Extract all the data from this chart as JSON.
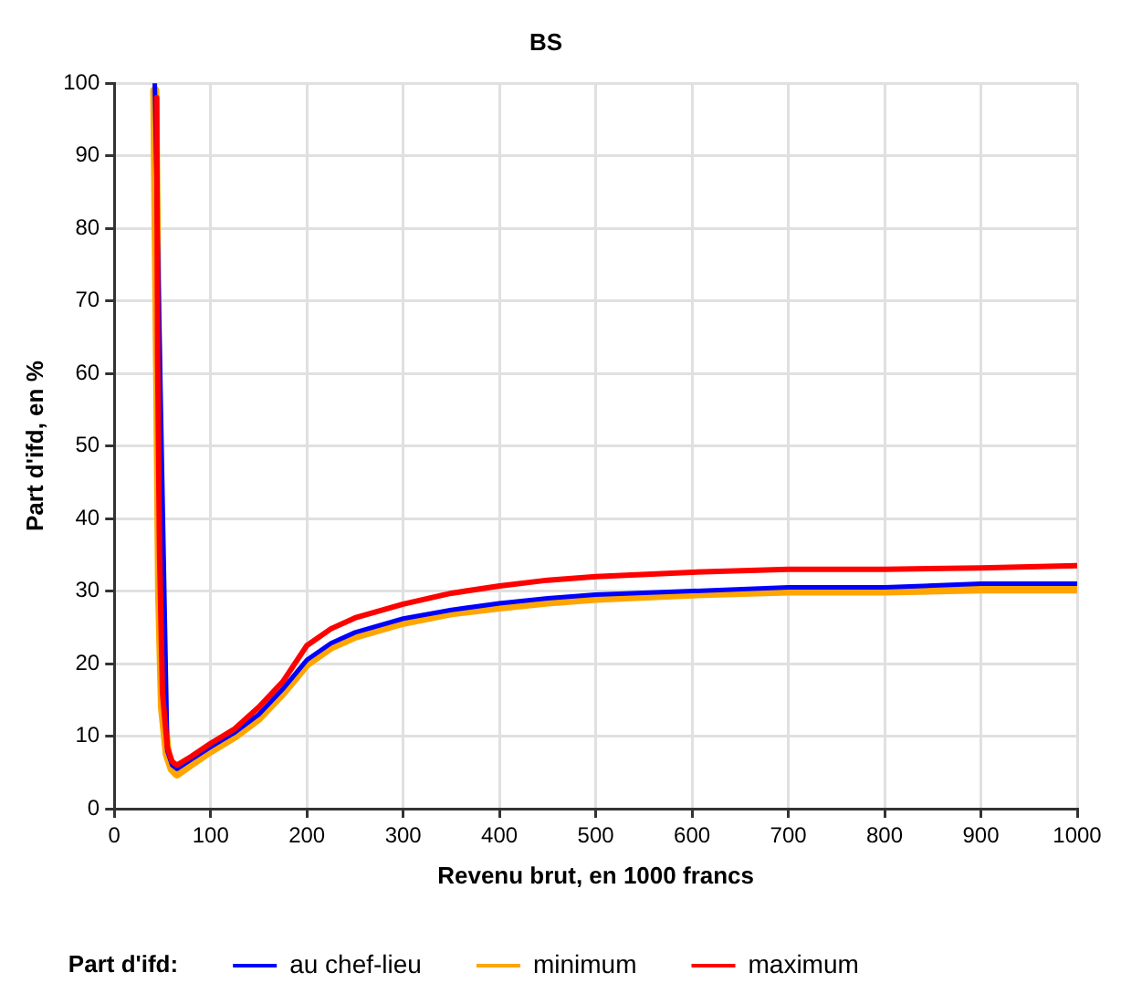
{
  "chart_data": {
    "type": "line",
    "title": "BS",
    "xlabel": "Revenu brut, en 1000 francs",
    "ylabel": "Part d'ifd, en %",
    "legend_title": "Part d'ifd:",
    "xlim": [
      0,
      1000
    ],
    "ylim": [
      0,
      100
    ],
    "xticks": [
      0,
      100,
      200,
      300,
      400,
      500,
      600,
      700,
      800,
      900,
      1000
    ],
    "yticks": [
      0,
      10,
      20,
      30,
      40,
      50,
      60,
      70,
      80,
      90,
      100
    ],
    "grid": true,
    "legend": "bottom",
    "marker": "none",
    "line_style": "solid",
    "series": [
      {
        "name": "au chef-lieu",
        "color": "#0000ff",
        "x": [
          42,
          45,
          47,
          50,
          55,
          60,
          65,
          80,
          100,
          125,
          150,
          175,
          200,
          225,
          250,
          300,
          350,
          400,
          450,
          500,
          600,
          700,
          800,
          900,
          1000
        ],
        "values": [
          100,
          null,
          null,
          null,
          8,
          6,
          5.5,
          6.8,
          8.5,
          10.5,
          13,
          16.5,
          20.5,
          22.8,
          24.3,
          26.2,
          27.4,
          28.3,
          29,
          29.5,
          30,
          30.5,
          30.5,
          31,
          31
        ]
      },
      {
        "name": "minimum",
        "color": "#ffa500",
        "x": [
          42,
          45,
          47,
          50,
          55,
          60,
          65,
          80,
          100,
          125,
          150,
          175,
          200,
          225,
          250,
          300,
          350,
          400,
          450,
          500,
          600,
          700,
          800,
          900,
          1000
        ],
        "values": [
          99,
          60,
          30,
          14,
          7.5,
          5.5,
          4.8,
          6.2,
          8,
          10,
          12.5,
          16,
          20,
          22.3,
          23.8,
          25.7,
          27,
          27.8,
          28.5,
          29,
          29.6,
          30,
          30,
          30.3,
          30.3
        ]
      },
      {
        "name": "maximum",
        "color": "#ff0000",
        "x": [
          44,
          45,
          47,
          50,
          55,
          60,
          65,
          80,
          100,
          125,
          150,
          175,
          200,
          225,
          250,
          300,
          350,
          400,
          450,
          500,
          600,
          700,
          800,
          900,
          1000
        ],
        "values": [
          98,
          62,
          35,
          16,
          8.5,
          6.5,
          6,
          7.2,
          9,
          11,
          14,
          17.5,
          22.5,
          24.8,
          26.3,
          28.2,
          29.7,
          30.7,
          31.5,
          32,
          32.6,
          33,
          33,
          33.2,
          33.5
        ]
      }
    ]
  }
}
